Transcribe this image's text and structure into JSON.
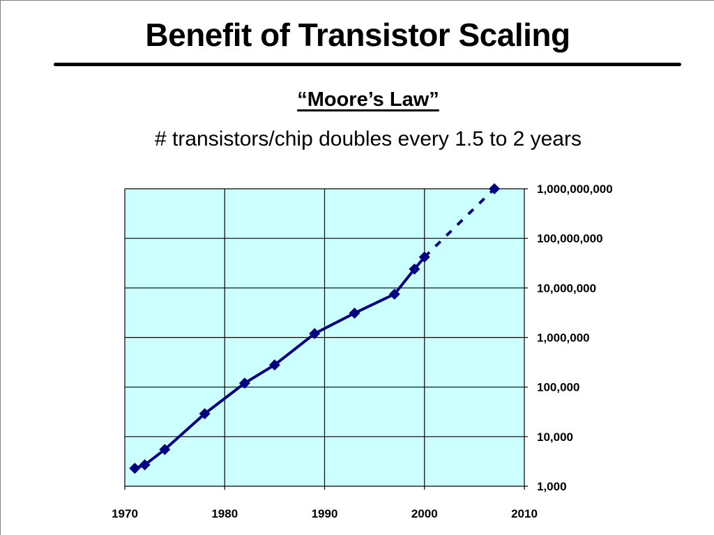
{
  "slide": {
    "title": "Benefit of Transistor Scaling",
    "subtitle": "“Moore’s Law”",
    "caption": "# transistors/chip doubles every 1.5 to 2 years"
  },
  "colors": {
    "plot_background": "#ccffff",
    "series_line": "#000080",
    "gridline": "#000000"
  },
  "chart_data": {
    "type": "line",
    "title": "",
    "xlabel": "",
    "ylabel": "",
    "x_scale": "linear",
    "y_scale": "log",
    "xlim": [
      1970,
      2010
    ],
    "ylim": [
      1000,
      1000000000
    ],
    "grid": true,
    "legend": "none",
    "x_ticks": [
      1970,
      1980,
      1990,
      2000,
      2010
    ],
    "x_tick_labels": [
      "1970",
      "1980",
      "1990",
      "2000",
      "2010"
    ],
    "y_ticks": [
      1000,
      10000,
      100000,
      1000000,
      10000000,
      100000000,
      1000000000
    ],
    "y_tick_labels": [
      "1,000",
      "10,000",
      "100,000",
      "1,000,000",
      "10,000,000",
      "100,000,000",
      "1,000,000,000"
    ],
    "y_axis_side": "right",
    "marker": "diamond",
    "series": [
      {
        "line_style": "solid",
        "x": [
          1971,
          1972,
          1974,
          1978,
          1982,
          1985,
          1989,
          1993,
          1997,
          1999,
          2000
        ],
        "y": [
          2300,
          2700,
          5500,
          29000,
          120000,
          280000,
          1200000,
          3100000,
          7500000,
          24000000,
          42000000
        ]
      },
      {
        "line_style": "dashed",
        "x": [
          2000,
          2007
        ],
        "y": [
          42000000,
          1000000000
        ]
      }
    ]
  }
}
